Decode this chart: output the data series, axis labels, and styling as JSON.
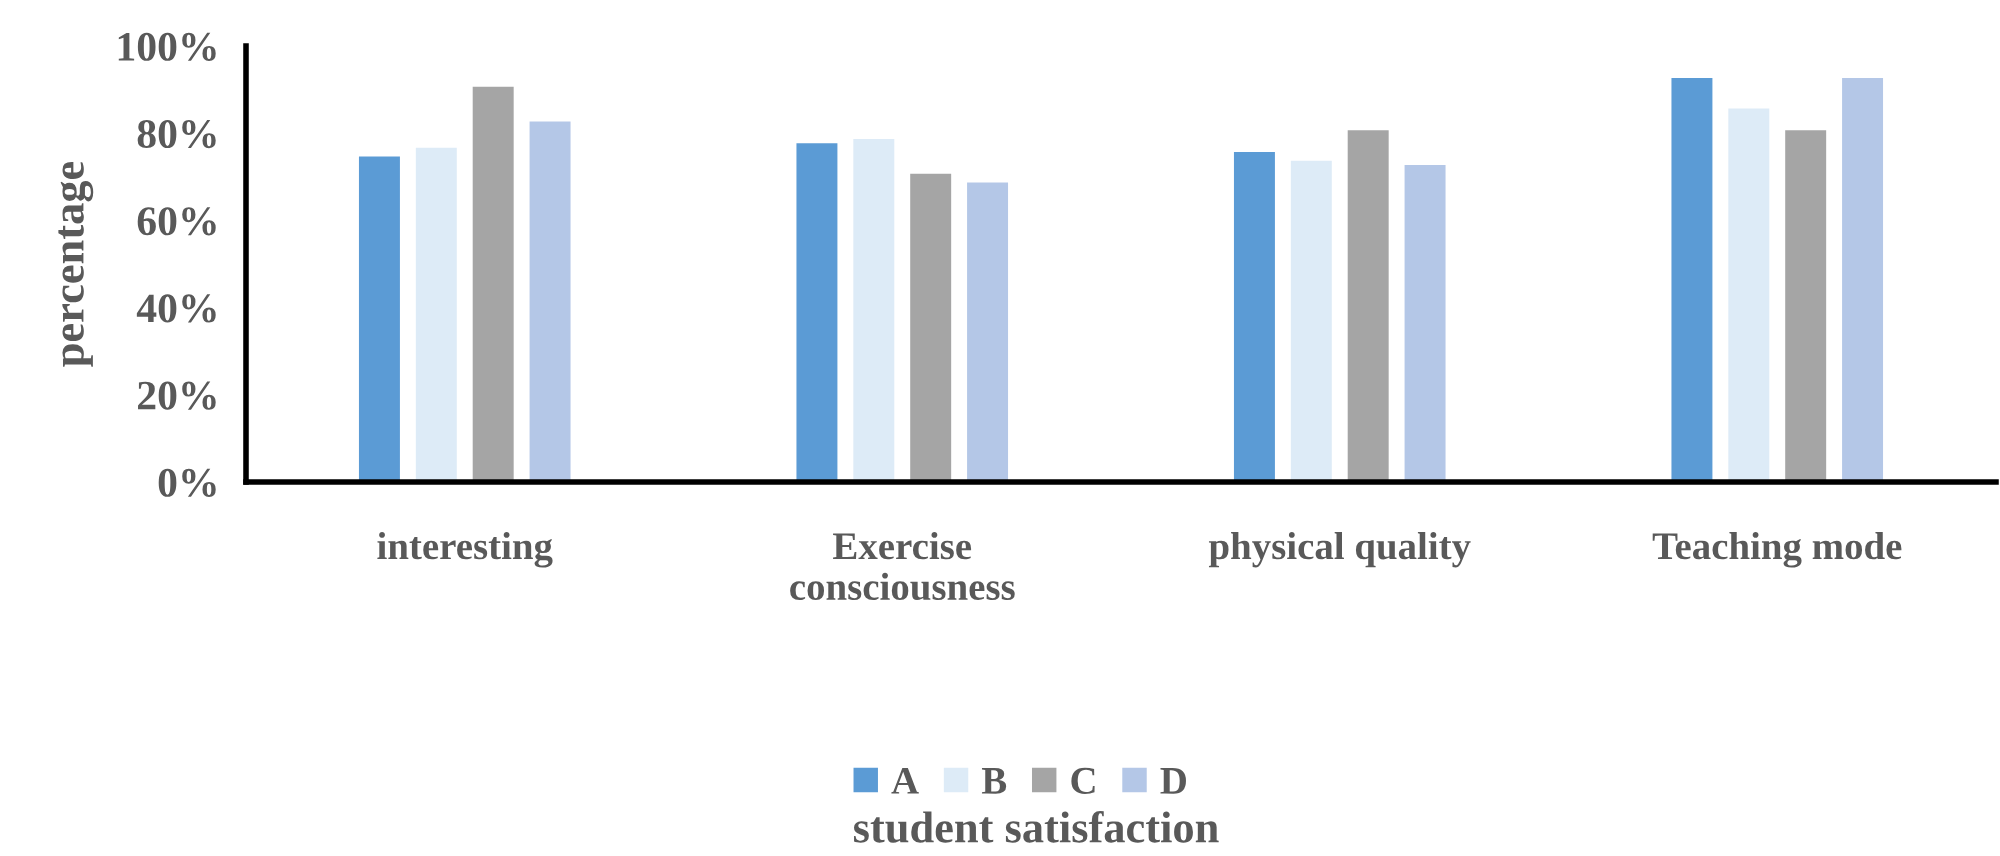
{
  "chart_data": {
    "type": "bar",
    "annotations": [
      "student satisfaction"
    ],
    "ylabel": "percentage",
    "categories": [
      "interesting",
      "Exercise\nconsciousness",
      "physical quality",
      "Teaching mode"
    ],
    "series": [
      {
        "name": "A",
        "color": "#5b9bd5",
        "values": [
          75,
          78,
          76,
          93
        ]
      },
      {
        "name": "B",
        "color": "#ddebf7",
        "values": [
          77,
          79,
          74,
          86
        ]
      },
      {
        "name": "C",
        "color": "#a5a5a5",
        "values": [
          91,
          71,
          81,
          81
        ]
      },
      {
        "name": "D",
        "color": "#b4c7e7",
        "values": [
          83,
          69,
          73,
          93
        ]
      }
    ],
    "ylim": [
      0,
      100
    ],
    "yticks": [
      {
        "value": 0,
        "label": "0%"
      },
      {
        "value": 20,
        "label": "20%"
      },
      {
        "value": 40,
        "label": "40%"
      },
      {
        "value": 60,
        "label": "60%"
      },
      {
        "value": 80,
        "label": "80%"
      },
      {
        "value": 100,
        "label": "100%"
      }
    ],
    "grid": false,
    "legend": "bottom"
  }
}
